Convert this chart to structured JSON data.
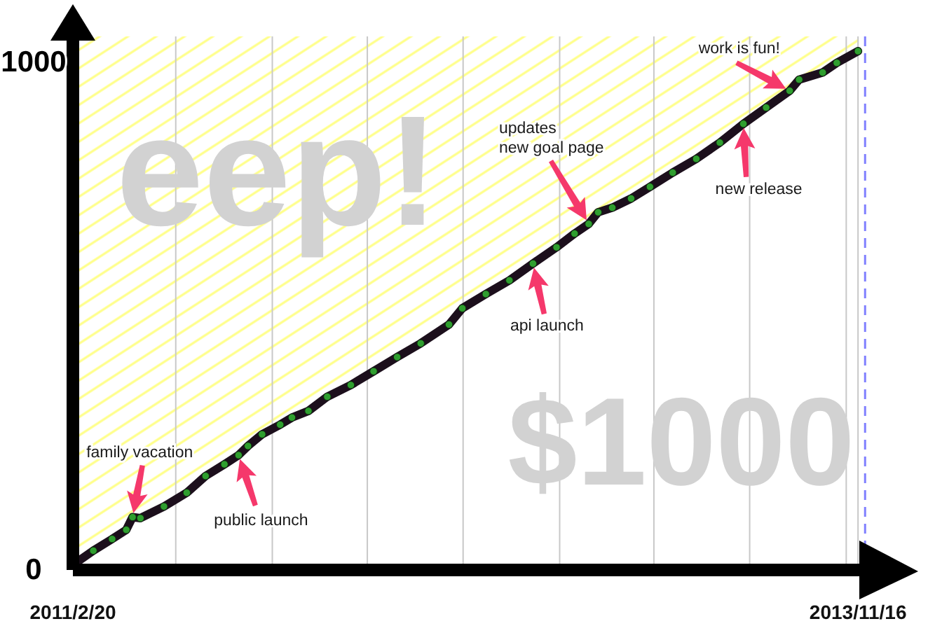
{
  "chart_data": {
    "type": "line",
    "xlim": [
      "2011-02-20",
      "2013-12-18"
    ],
    "xticks": [
      {
        "value": "2011-02-20",
        "label": "2011/2/20"
      },
      {
        "value": "2011-07-01",
        "label": null
      },
      {
        "value": "2011-11-01",
        "label": null
      },
      {
        "value": "2012-03-01",
        "label": null
      },
      {
        "value": "2012-07-01",
        "label": null
      },
      {
        "value": "2012-11-01",
        "label": null
      },
      {
        "value": "2013-03-01",
        "label": null
      },
      {
        "value": "2013-07-01",
        "label": null
      },
      {
        "value": "2013-11-01",
        "label": null
      },
      {
        "value": "2013-11-16",
        "label": "2013/11/16"
      }
    ],
    "ylim": [
      0,
      1050
    ],
    "yticks": [
      0,
      1000
    ],
    "grid": "x",
    "series": [
      {
        "color": "#1c0f1c",
        "marker": "circle",
        "x": [
          "2011-02-20",
          "2011-03-18",
          "2011-04-11",
          "2011-04-29",
          "2011-05-07",
          "2011-05-17",
          "2011-06-16",
          "2011-07-15",
          "2011-08-08",
          "2011-09-01",
          "2011-09-19",
          "2011-10-01",
          "2011-10-19",
          "2011-11-11",
          "2011-11-26",
          "2011-12-17",
          "2012-01-10",
          "2012-02-09",
          "2012-03-09",
          "2012-04-08",
          "2012-05-08",
          "2012-06-13",
          "2012-06-30",
          "2012-07-30",
          "2012-08-29",
          "2012-09-28",
          "2012-10-28",
          "2012-11-20",
          "2012-12-08",
          "2012-12-20",
          "2013-01-07",
          "2013-01-31",
          "2013-02-24",
          "2013-03-25",
          "2013-04-24",
          "2013-05-24",
          "2013-06-23",
          "2013-07-22",
          "2013-08-21",
          "2013-09-02",
          "2013-10-02",
          "2013-10-20",
          "2013-11-16"
        ],
        "values": [
          10,
          38,
          61,
          79,
          104,
          102,
          125,
          152,
          185,
          208,
          226,
          244,
          267,
          286,
          300,
          313,
          341,
          364,
          391,
          419,
          446,
          483,
          515,
          543,
          570,
          603,
          635,
          662,
          681,
          704,
          713,
          731,
          754,
          782,
          809,
          841,
          878,
          910,
          943,
          965,
          979,
          998,
          1021
        ],
        "colors": [
          "#2f9e2f",
          "#2f9e2f",
          "#2f9e2f",
          "#2f9e2f",
          "#2f9e2f",
          "#2f9e2f",
          "#2f9e2f",
          "#2f9e2f",
          "#2f9e2f",
          "#2f9e2f",
          "#2f9e2f",
          "#2f9e2f",
          "#2f9e2f",
          "#2f9e2f",
          "#2f9e2f",
          "#2f9e2f",
          "#2f9e2f",
          "#2f9e2f",
          "#2f9e2f",
          "#2f9e2f",
          "#2f9e2f",
          "#2f9e2f",
          "#2f9e2f",
          "#2f9e2f",
          "#2f9e2f",
          "#2f9e2f",
          "#2f9e2f",
          "#2f9e2f",
          "#2f9e2f",
          "#2f9e2f",
          "#2f9e2f",
          "#2f9e2f",
          "#2f9e2f",
          "#2f9e2f",
          "#2f9e2f",
          "#2f9e2f",
          "#2f9e2f",
          "#2f9e2f",
          "#2f9e2f",
          "#2f9e2f",
          "#2f9e2f",
          "#2f9e2f",
          "#2f9e2f"
        ]
      }
    ],
    "ref_lines": [
      {
        "axis": "x",
        "value": "2013-11-25",
        "color": "#8080ff",
        "line_style": "dashed"
      }
    ],
    "annotations": [
      "family vacation",
      "public launch",
      "api launch",
      "updates\nnew goal page",
      "work is fun!",
      "new release",
      "eep!",
      "$1000"
    ]
  }
}
